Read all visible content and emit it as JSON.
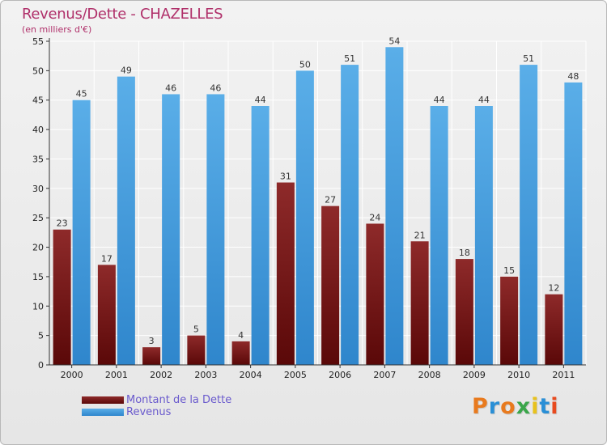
{
  "title": "Revenus/Dette - CHAZELLES",
  "subtitle": "(en milliers d'€)",
  "chart_data": {
    "type": "bar",
    "categories": [
      "2000",
      "2001",
      "2002",
      "2003",
      "2004",
      "2005",
      "2006",
      "2007",
      "2008",
      "2009",
      "2010",
      "2011"
    ],
    "series": [
      {
        "name": "Montant de la Dette",
        "color": "#7a1a1a",
        "values": [
          23,
          17,
          3,
          5,
          4,
          31,
          27,
          24,
          21,
          18,
          15,
          12
        ]
      },
      {
        "name": "Revenus",
        "color": "#4a9fe0",
        "values": [
          45,
          49,
          46,
          46,
          44,
          50,
          51,
          54,
          44,
          44,
          51,
          48
        ]
      }
    ],
    "ylim": [
      0,
      55
    ],
    "yticks": [
      0,
      5,
      10,
      15,
      20,
      25,
      30,
      35,
      40,
      45,
      50,
      55
    ],
    "grid": true,
    "legend": "bottom-left"
  },
  "legend": {
    "items": [
      {
        "label": "Montant de la Dette",
        "color": "#6b0f0f"
      },
      {
        "label": "Revenus",
        "color": "#4a9fe0"
      }
    ]
  },
  "logo": {
    "letters": [
      "P",
      "r",
      "o",
      "x",
      "i",
      "t",
      "i"
    ],
    "colors": [
      "#e87a1e",
      "#2a8fd6",
      "#e87a1e",
      "#3aa64a",
      "#e8c21e",
      "#2a8fd6",
      "#e84a1e"
    ]
  }
}
